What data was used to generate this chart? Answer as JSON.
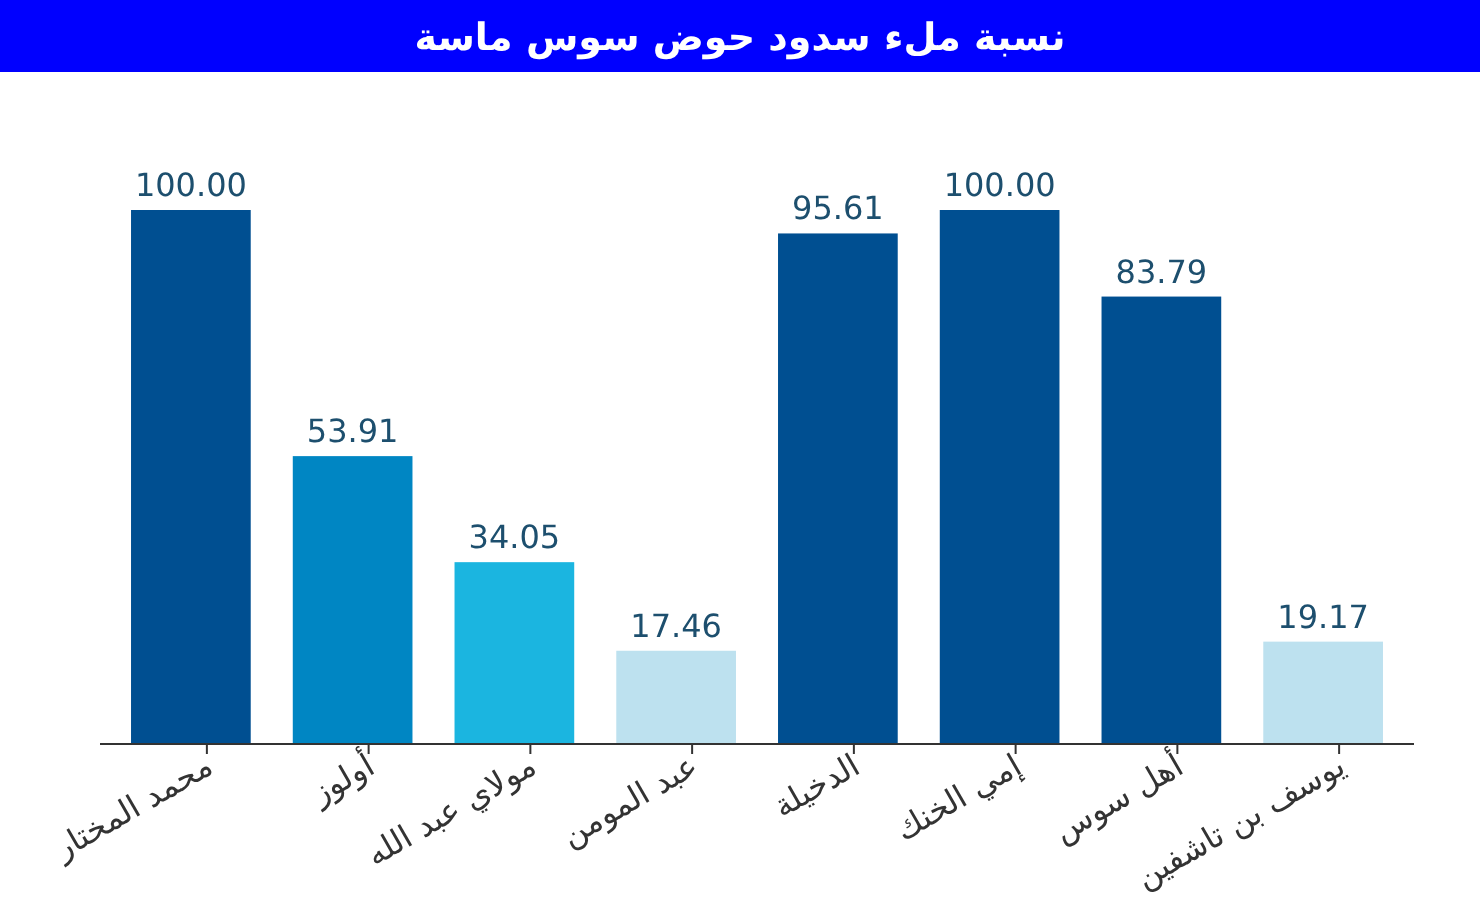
{
  "chart_data": {
    "type": "bar",
    "title": "نسبة ملء سدود حوض سوس ماسة",
    "categories": [
      "محمد المختار",
      "أولوز",
      "مولاي عبد الله",
      "عبد المومن",
      "الدخيلة",
      "إمي الخنك",
      "أهل سوس",
      "يوسف بن تاشفين"
    ],
    "values": [
      100.0,
      53.91,
      34.05,
      17.46,
      95.61,
      100.0,
      83.79,
      19.17
    ],
    "colors": [
      "#004f91",
      "#0086c3",
      "#1bb5e0",
      "#bde1ef",
      "#004f91",
      "#004f91",
      "#004f91",
      "#bde1ef"
    ],
    "value_labels": [
      "100.00",
      "53.91",
      "34.05",
      "17.46",
      "95.61",
      "100.00",
      "83.79",
      "19.17"
    ]
  }
}
